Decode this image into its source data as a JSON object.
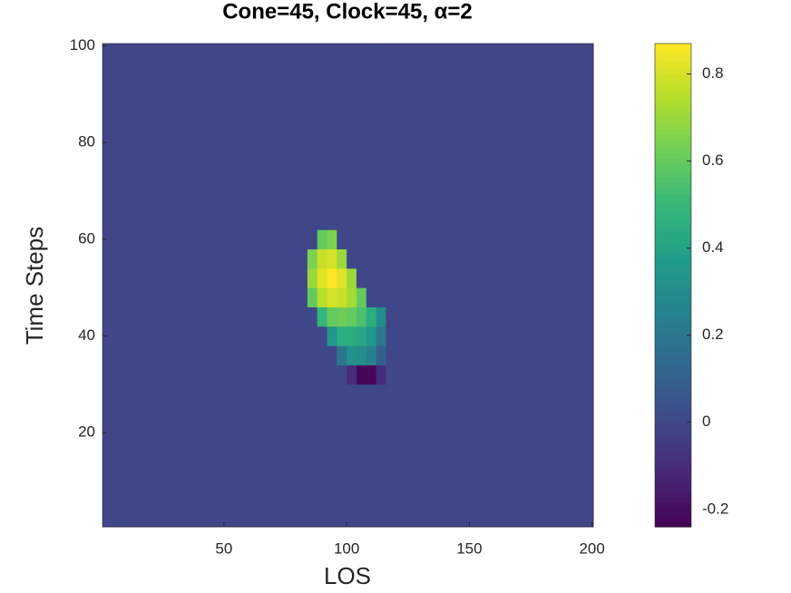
{
  "chart_data": {
    "type": "heatmap",
    "title": "Cone=45, Clock=45, α=2",
    "xlabel": "LOS",
    "ylabel": "Time Steps",
    "x_edges": [
      0.5,
      84,
      88,
      92,
      96,
      100,
      104,
      108,
      112,
      116,
      120,
      200.5
    ],
    "y_edges": [
      0.5,
      30,
      34,
      38,
      42,
      46,
      50,
      54,
      58,
      62,
      100.5
    ],
    "z": [
      [
        0,
        0,
        0,
        0,
        0,
        0,
        0,
        0,
        0,
        0,
        0
      ],
      [
        0,
        0,
        0,
        0,
        0,
        -0.1,
        -0.22,
        -0.22,
        -0.1,
        0,
        0
      ],
      [
        0,
        0,
        0,
        0,
        0.2,
        0.32,
        0.3,
        0.25,
        0.1,
        0,
        0
      ],
      [
        0,
        0,
        0,
        0.35,
        0.45,
        0.45,
        0.42,
        0.35,
        0.2,
        0,
        0
      ],
      [
        0,
        0,
        0.5,
        0.6,
        0.62,
        0.6,
        0.55,
        0.45,
        0.3,
        0,
        0
      ],
      [
        0,
        0.6,
        0.75,
        0.8,
        0.78,
        0.72,
        0.6,
        0,
        0,
        0,
        0
      ],
      [
        0,
        0.7,
        0.82,
        0.87,
        0.82,
        0.7,
        0,
        0,
        0,
        0,
        0
      ],
      [
        0,
        0.65,
        0.78,
        0.8,
        0.7,
        0,
        0,
        0,
        0,
        0,
        0
      ],
      [
        0,
        0,
        0.6,
        0.65,
        0,
        0,
        0,
        0,
        0,
        0,
        0
      ],
      [
        0,
        0,
        0,
        0,
        0,
        0,
        0,
        0,
        0,
        0,
        0
      ]
    ],
    "xlim": [
      0.5,
      200.5
    ],
    "ylim": [
      0.5,
      100.5
    ],
    "xticks": [
      50,
      100,
      150,
      200
    ],
    "yticks": [
      20,
      40,
      60,
      80,
      100
    ],
    "colormap": "viridis",
    "clim": [
      -0.24,
      0.87
    ],
    "cticks": [
      -0.2,
      0,
      0.2,
      0.4,
      0.6,
      0.8
    ]
  }
}
